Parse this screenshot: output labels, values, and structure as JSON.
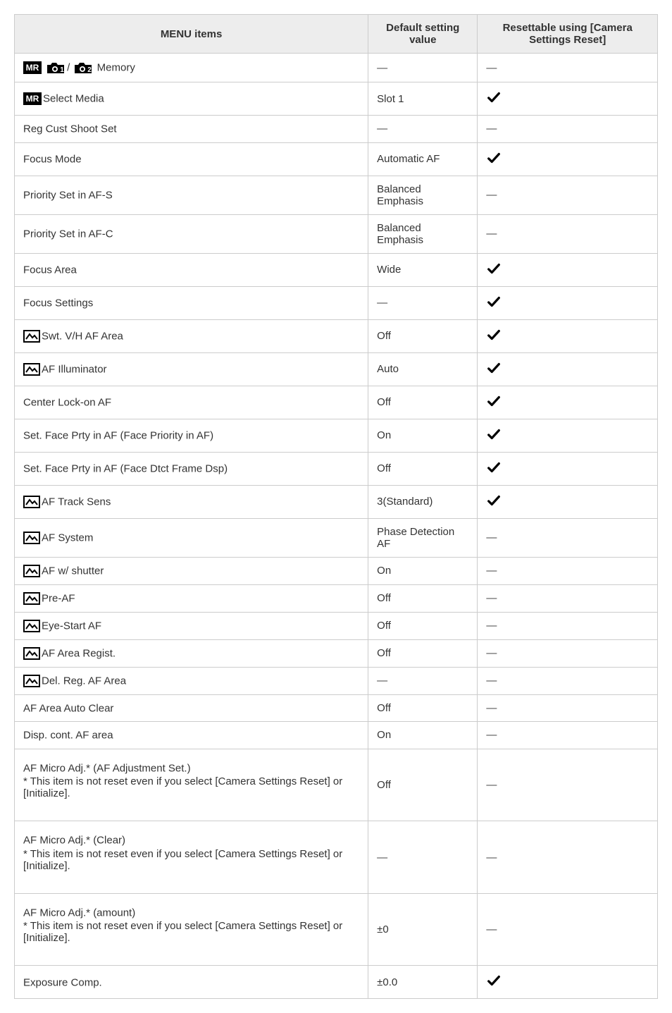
{
  "columns": {
    "menu": "MENU items",
    "default": "Default setting value",
    "resettable": "Resettable using [Camera Settings Reset]"
  },
  "check_color": "#000000",
  "dash": "—",
  "rows": [
    {
      "icon": "mr-cam12",
      "label": " Memory",
      "default_is_dash": true,
      "reset": "dash"
    },
    {
      "icon": "mr-badge",
      "label": "Select Media",
      "default": "Slot 1",
      "reset": "check"
    },
    {
      "icon": null,
      "label": "Reg Cust Shoot Set",
      "default_is_dash": true,
      "reset": "dash"
    },
    {
      "icon": null,
      "label": "Focus Mode",
      "default": "Automatic AF",
      "reset": "check"
    },
    {
      "icon": null,
      "label": "Priority Set in AF-S",
      "default": "Balanced Emphasis",
      "reset": "dash"
    },
    {
      "icon": null,
      "label": "Priority Set in AF-C",
      "default": "Balanced Emphasis",
      "reset": "dash"
    },
    {
      "icon": null,
      "label": "Focus Area",
      "default": "Wide",
      "reset": "check"
    },
    {
      "icon": null,
      "label": "Focus Settings",
      "default_is_dash": true,
      "reset": "check"
    },
    {
      "icon": "still",
      "label": "Swt. V/H AF Area",
      "default": "Off",
      "reset": "check"
    },
    {
      "icon": "still",
      "label": "AF Illuminator",
      "default": "Auto",
      "reset": "check"
    },
    {
      "icon": null,
      "label": "Center Lock-on AF",
      "default": "Off",
      "reset": "check"
    },
    {
      "icon": null,
      "label": "Set. Face Prty in AF (Face Priority in AF)",
      "default": "On",
      "reset": "check"
    },
    {
      "icon": null,
      "label": "Set. Face Prty in AF (Face Dtct Frame Dsp)",
      "default": "Off",
      "reset": "check"
    },
    {
      "icon": "still",
      "label": "AF Track Sens",
      "default": "3(Standard)",
      "reset": "check"
    },
    {
      "icon": "still",
      "label": "AF System",
      "default": "Phase Detection AF",
      "reset": "dash"
    },
    {
      "icon": "still",
      "label": "AF w/ shutter",
      "default": "On",
      "reset": "dash"
    },
    {
      "icon": "still",
      "label": "Pre-AF",
      "default": "Off",
      "reset": "dash"
    },
    {
      "icon": "still",
      "label": "Eye-Start AF",
      "default": "Off",
      "reset": "dash"
    },
    {
      "icon": "still",
      "label": "AF Area Regist.",
      "default": "Off",
      "reset": "dash"
    },
    {
      "icon": "still",
      "label": "Del. Reg. AF Area",
      "default_is_dash": true,
      "reset": "dash"
    },
    {
      "icon": null,
      "label": "AF Area Auto Clear",
      "default": "Off",
      "reset": "dash"
    },
    {
      "icon": null,
      "label": "Disp. cont. AF area",
      "default": "On",
      "reset": "dash"
    },
    {
      "icon": null,
      "label": "AF Micro Adj.* (AF Adjustment Set.)",
      "note": "* This item is not reset even if you select [Camera Settings Reset] or [Initialize].",
      "default": "Off",
      "reset": "dash",
      "tall": true
    },
    {
      "icon": null,
      "label": "AF Micro Adj.* (Clear)",
      "note": "* This item is not reset even if you select [Camera Settings Reset] or [Initialize].",
      "default_is_dash": true,
      "reset": "dash",
      "tall": true
    },
    {
      "icon": null,
      "label": "AF Micro Adj.* (amount)",
      "note": "* This item is not reset even if you select [Camera Settings Reset] or [Initialize].",
      "default": "±0",
      "reset": "dash",
      "tall": true
    },
    {
      "icon": null,
      "label": "Exposure Comp.",
      "default": "±0.0",
      "reset": "check"
    }
  ]
}
